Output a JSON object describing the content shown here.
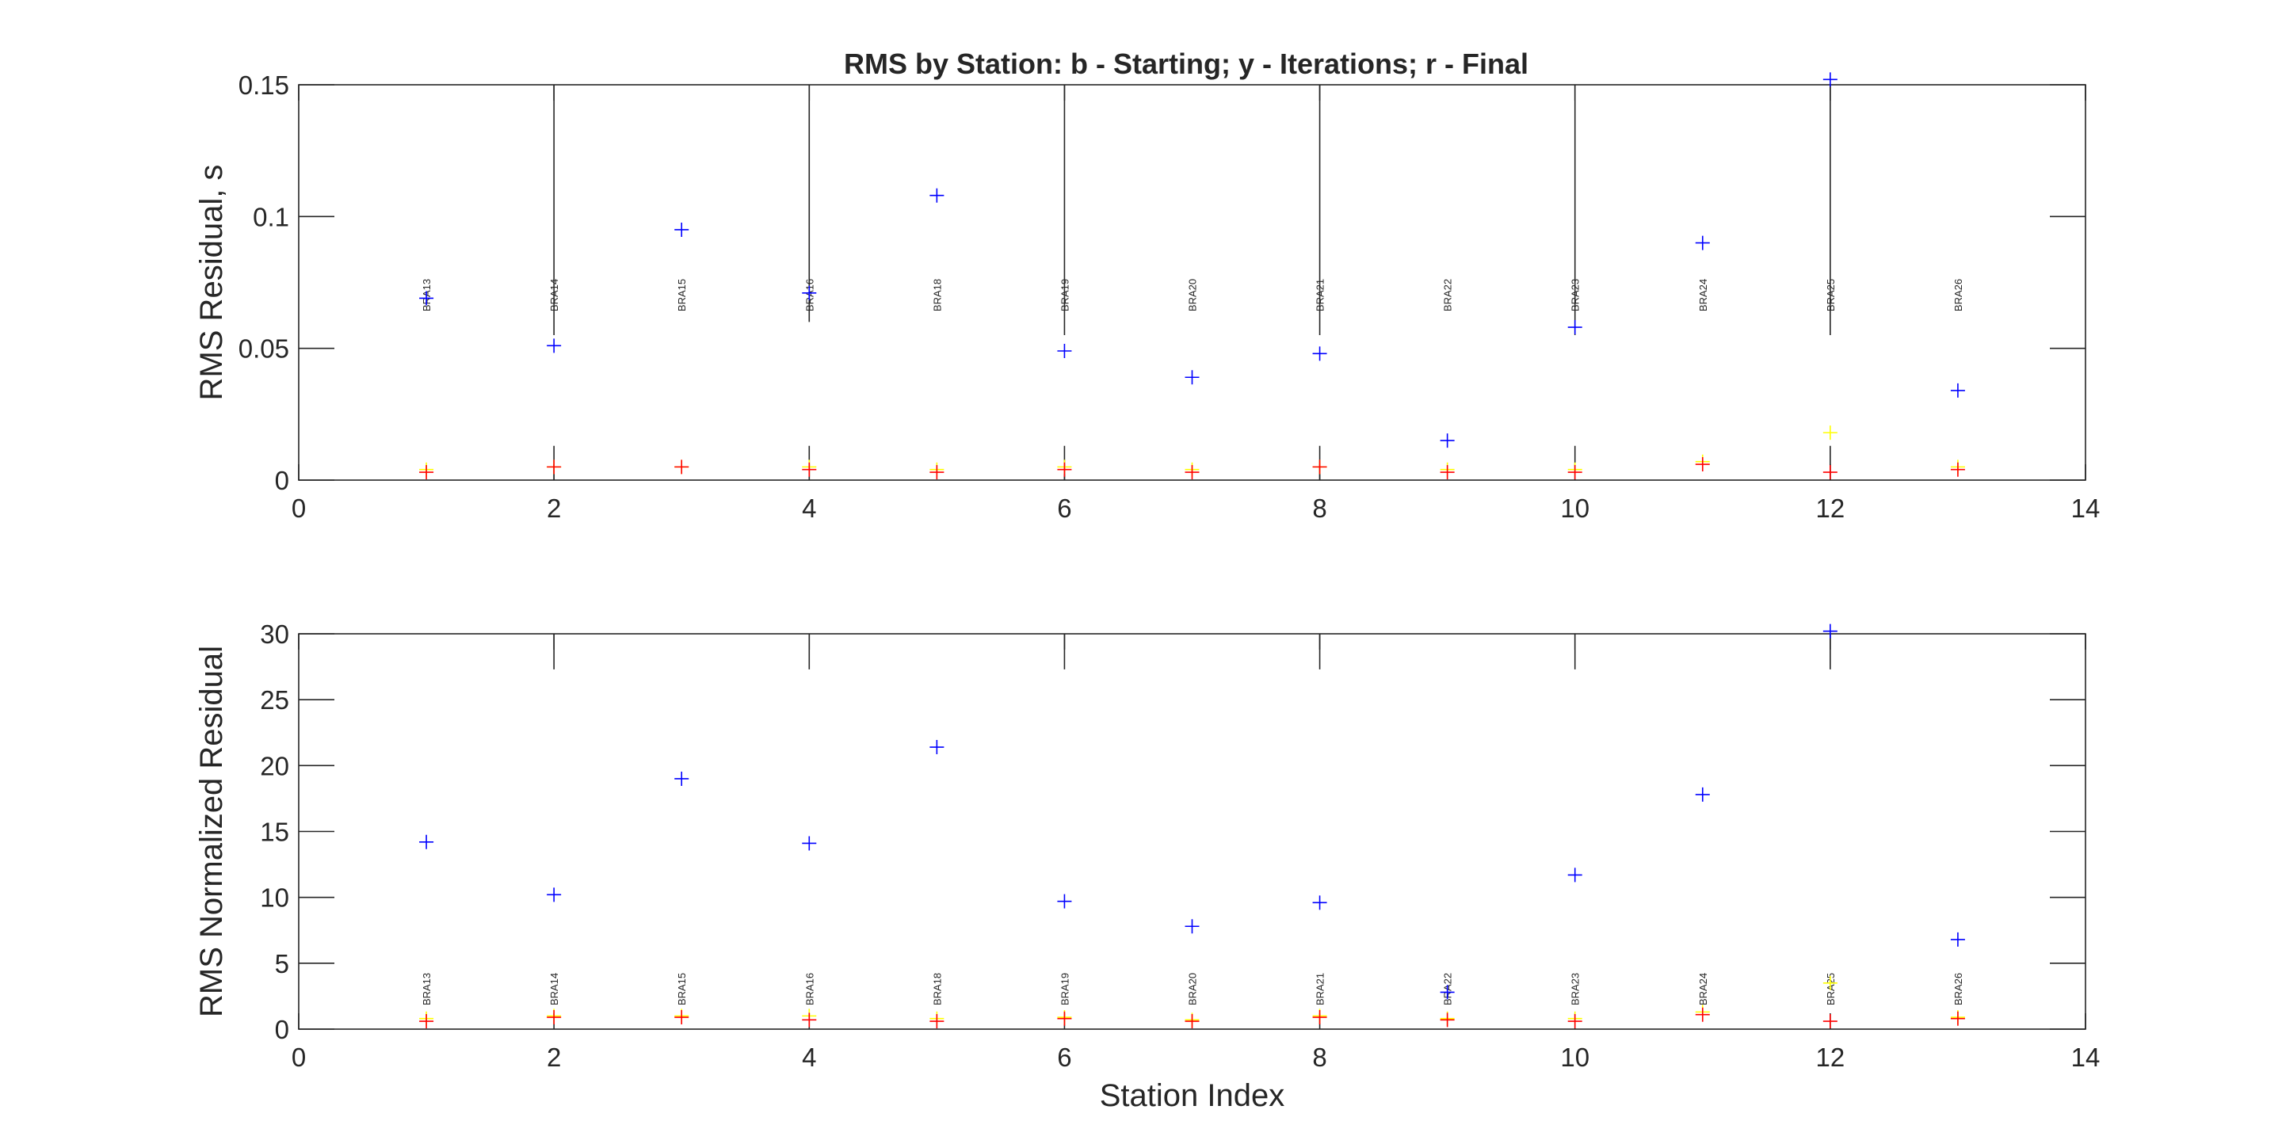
{
  "figure_title": "RMS by Station: b - Starting; y - Iterations; r - Final",
  "colors": {
    "starting": "#0000ff",
    "iterations": "#ffff00",
    "final": "#ff0000",
    "axis": "#262626"
  },
  "chart_data": [
    {
      "type": "scatter",
      "marker": "+",
      "title": "RMS by Station: b - Starting; y - Iterations; r - Final",
      "xlabel": "",
      "ylabel": "RMS Residual, s",
      "xlim": [
        0,
        14
      ],
      "ylim": [
        0,
        0.15
      ],
      "xticks": [
        "0",
        "2",
        "4",
        "6",
        "8",
        "10",
        "12",
        "14"
      ],
      "xtick_values": [
        0,
        2,
        4,
        6,
        8,
        10,
        12,
        14
      ],
      "yticks": [
        "0",
        "0.05",
        "0.1",
        "0.15"
      ],
      "ytick_values": [
        0,
        0.05,
        0.1,
        0.15
      ],
      "grid": false,
      "station_label_y": 0.064,
      "stations": [
        "BRA13",
        "BRA14",
        "BRA15",
        "BRA16",
        "BRA18",
        "BRA19",
        "BRA20",
        "BRA21",
        "BRA22",
        "BRA23",
        "BRA24",
        "BRA25",
        "BRA26"
      ],
      "x": [
        1,
        2,
        3,
        4,
        5,
        6,
        7,
        8,
        9,
        10,
        11,
        12,
        13
      ],
      "stems": [
        {
          "x": 2,
          "y0": 0.055,
          "y1": 0.15
        },
        {
          "x": 4,
          "y0": 0.06,
          "y1": 0.15
        },
        {
          "x": 6,
          "y0": 0.055,
          "y1": 0.15
        },
        {
          "x": 8,
          "y0": 0.055,
          "y1": 0.15
        },
        {
          "x": 10,
          "y0": 0.055,
          "y1": 0.15
        },
        {
          "x": 12,
          "y0": 0.055,
          "y1": 0.15
        },
        {
          "x": 2,
          "y0": 0,
          "y1": 0.013
        },
        {
          "x": 4,
          "y0": 0,
          "y1": 0.013
        },
        {
          "x": 6,
          "y0": 0,
          "y1": 0.013
        },
        {
          "x": 8,
          "y0": 0,
          "y1": 0.013
        },
        {
          "x": 10,
          "y0": 0,
          "y1": 0.013
        },
        {
          "x": 12,
          "y0": 0,
          "y1": 0.013
        }
      ],
      "series": [
        {
          "color": "#0000ff",
          "values": [
            0.069,
            0.051,
            0.095,
            0.071,
            0.108,
            0.049,
            0.039,
            0.048,
            0.015,
            0.058,
            0.09,
            0.152,
            0.034
          ]
        },
        {
          "color": "#ffff00",
          "values": [
            0.004,
            0.005,
            0.005,
            0.005,
            0.004,
            0.005,
            0.004,
            0.005,
            0.004,
            0.004,
            0.007,
            0.018,
            0.005
          ]
        },
        {
          "color": "#ff0000",
          "values": [
            0.003,
            0.005,
            0.005,
            0.004,
            0.003,
            0.004,
            0.003,
            0.005,
            0.003,
            0.003,
            0.006,
            0.003,
            0.004
          ]
        }
      ]
    },
    {
      "type": "scatter",
      "marker": "+",
      "title": "",
      "xlabel": "Station Index",
      "ylabel": "RMS Normalized Residual",
      "xlim": [
        0,
        14
      ],
      "ylim": [
        0,
        30
      ],
      "xticks": [
        "0",
        "2",
        "4",
        "6",
        "8",
        "10",
        "12",
        "14"
      ],
      "xtick_values": [
        0,
        2,
        4,
        6,
        8,
        10,
        12,
        14
      ],
      "yticks": [
        "0",
        "5",
        "10",
        "15",
        "20",
        "25",
        "30"
      ],
      "ytick_values": [
        0,
        5,
        10,
        15,
        20,
        25,
        30
      ],
      "grid": false,
      "station_label_y": 1.8,
      "stations": [
        "BRA13",
        "BRA14",
        "BRA15",
        "BRA16",
        "BRA18",
        "BRA19",
        "BRA20",
        "BRA21",
        "BRA22",
        "BRA23",
        "BRA24",
        "BRA25",
        "BRA26"
      ],
      "x": [
        1,
        2,
        3,
        4,
        5,
        6,
        7,
        8,
        9,
        10,
        11,
        12,
        13
      ],
      "stems": [
        {
          "x": 2,
          "y0": 27.3,
          "y1": 30
        },
        {
          "x": 4,
          "y0": 27.3,
          "y1": 30
        },
        {
          "x": 6,
          "y0": 27.3,
          "y1": 30
        },
        {
          "x": 8,
          "y0": 27.3,
          "y1": 30
        },
        {
          "x": 10,
          "y0": 27.3,
          "y1": 30
        },
        {
          "x": 12,
          "y0": 27.3,
          "y1": 30
        }
      ],
      "series": [
        {
          "color": "#0000ff",
          "values": [
            14.2,
            10.2,
            19.0,
            14.1,
            21.4,
            9.7,
            7.8,
            9.6,
            2.8,
            11.7,
            17.8,
            30.2,
            6.8
          ]
        },
        {
          "color": "#ffff00",
          "values": [
            0.8,
            1.0,
            1.0,
            1.0,
            0.8,
            0.9,
            0.7,
            1.0,
            0.8,
            0.8,
            1.3,
            3.5,
            0.9
          ]
        },
        {
          "color": "#ff0000",
          "values": [
            0.6,
            0.9,
            0.9,
            0.7,
            0.6,
            0.8,
            0.6,
            0.9,
            0.7,
            0.6,
            1.1,
            0.6,
            0.8
          ]
        }
      ]
    }
  ]
}
